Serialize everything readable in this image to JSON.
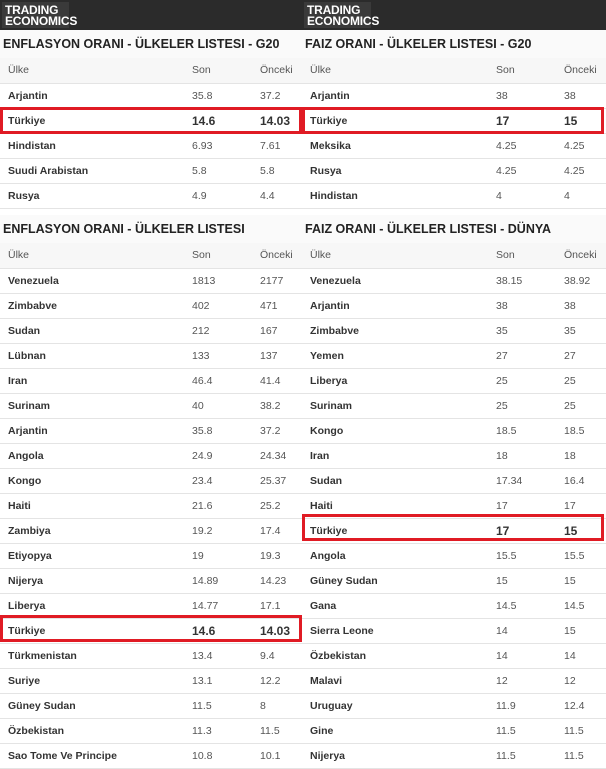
{
  "brand": {
    "line1": "TRADING",
    "line2": "ECONOMICS"
  },
  "colors": {
    "highlight": "#e01b24",
    "header_bg": "#2b2b2b"
  },
  "columns": {
    "country": "Ülke",
    "last": "Son",
    "previous": "Önceki"
  },
  "tables": [
    {
      "title": "ENFLASYON ORANI - ÜLKELER LISTESI - G20",
      "rows": [
        [
          "Arjantin",
          "35.8",
          "37.2"
        ],
        [
          "Türkiye",
          "14.6",
          "14.03"
        ],
        [
          "Hindistan",
          "6.93",
          "7.61"
        ],
        [
          "Suudi Arabistan",
          "5.8",
          "5.8"
        ],
        [
          "Rusya",
          "4.9",
          "4.4"
        ]
      ],
      "highlight": 1
    },
    {
      "title": "FAIZ ORANI - ÜLKELER LISTESI - G20",
      "rows": [
        [
          "Arjantin",
          "38",
          "38"
        ],
        [
          "Türkiye",
          "17",
          "15"
        ],
        [
          "Meksika",
          "4.25",
          "4.25"
        ],
        [
          "Rusya",
          "4.25",
          "4.25"
        ],
        [
          "Hindistan",
          "4",
          "4"
        ]
      ],
      "highlight": 1
    },
    {
      "title": "ENFLASYON ORANI - ÜLKELER LISTESI",
      "rows": [
        [
          "Venezuela",
          "1813",
          "2177"
        ],
        [
          "Zimbabve",
          "402",
          "471"
        ],
        [
          "Sudan",
          "212",
          "167"
        ],
        [
          "Lübnan",
          "133",
          "137"
        ],
        [
          "Iran",
          "46.4",
          "41.4"
        ],
        [
          "Surinam",
          "40",
          "38.2"
        ],
        [
          "Arjantin",
          "35.8",
          "37.2"
        ],
        [
          "Angola",
          "24.9",
          "24.34"
        ],
        [
          "Kongo",
          "23.4",
          "25.37"
        ],
        [
          "Haiti",
          "21.6",
          "25.2"
        ],
        [
          "Zambiya",
          "19.2",
          "17.4"
        ],
        [
          "Etiyopya",
          "19",
          "19.3"
        ],
        [
          "Nijerya",
          "14.89",
          "14.23"
        ],
        [
          "Liberya",
          "14.77",
          "17.1"
        ],
        [
          "Türkiye",
          "14.6",
          "14.03"
        ],
        [
          "Türkmenistan",
          "13.4",
          "9.4"
        ],
        [
          "Suriye",
          "13.1",
          "12.2"
        ],
        [
          "Güney Sudan",
          "11.5",
          "8"
        ],
        [
          "Özbekistan",
          "11.3",
          "11.5"
        ],
        [
          "Sao Tome Ve Principe",
          "10.8",
          "10.1"
        ]
      ],
      "highlight": 14
    },
    {
      "title": "FAIZ ORANI - ÜLKELER LISTESI  - DÜNYA",
      "rows": [
        [
          "Venezuela",
          "38.15",
          "38.92"
        ],
        [
          "Arjantin",
          "38",
          "38"
        ],
        [
          "Zimbabve",
          "35",
          "35"
        ],
        [
          "Yemen",
          "27",
          "27"
        ],
        [
          "Liberya",
          "25",
          "25"
        ],
        [
          "Surinam",
          "25",
          "25"
        ],
        [
          "Kongo",
          "18.5",
          "18.5"
        ],
        [
          "Iran",
          "18",
          "18"
        ],
        [
          "Sudan",
          "17.34",
          "16.4"
        ],
        [
          "Haiti",
          "17",
          "17"
        ],
        [
          "Türkiye",
          "17",
          "15"
        ],
        [
          "Angola",
          "15.5",
          "15.5"
        ],
        [
          "Güney Sudan",
          "15",
          "15"
        ],
        [
          "Gana",
          "14.5",
          "14.5"
        ],
        [
          "Sierra Leone",
          "14",
          "15"
        ],
        [
          "Özbekistan",
          "14",
          "14"
        ],
        [
          "Malavi",
          "12",
          "12"
        ],
        [
          "Uruguay",
          "11.9",
          "12.4"
        ],
        [
          "Gine",
          "11.5",
          "11.5"
        ],
        [
          "Nijerya",
          "11.5",
          "11.5"
        ]
      ],
      "highlight": 10
    }
  ]
}
